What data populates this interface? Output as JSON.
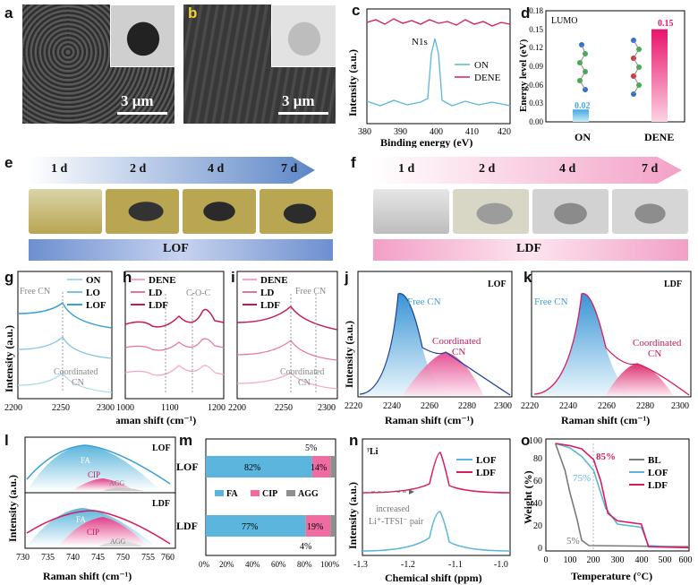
{
  "panel_labels": {
    "a": "a",
    "b": "b",
    "c": "c",
    "d": "d",
    "e": "e",
    "f": "f",
    "g": "g",
    "h": "h",
    "i": "i",
    "j": "j",
    "k": "k",
    "l": "l",
    "m": "m",
    "n": "n",
    "o": "o"
  },
  "sem": {
    "scale_a": "3 μm",
    "scale_b": "3 μm"
  },
  "photos": {
    "days": [
      "1 d",
      "2 d",
      "4 d",
      "7 d"
    ],
    "bar_e": "LOF",
    "bar_f": "LDF"
  },
  "colors": {
    "blue": "#5bb5dc",
    "pink": "#d81b60",
    "light_pink": "#f2a7c0",
    "grey": "#7a7a7a"
  },
  "chart_data": [
    {
      "panel": "c",
      "type": "line",
      "xlabel": "Binding energy (eV)",
      "ylabel": "Intensity (a.u.)",
      "xlim": [
        380,
        420
      ],
      "xticks": [
        "380",
        "390",
        "400",
        "410",
        "420"
      ],
      "annotation": "N1s",
      "series": [
        {
          "name": "ON",
          "color": "#5bb5dc"
        },
        {
          "name": "DENE",
          "color": "#d81b60"
        }
      ]
    },
    {
      "panel": "d",
      "type": "bar",
      "title": "LUMO",
      "ylabel": "Energy level (eV)",
      "categories": [
        "ON",
        "DENE"
      ],
      "values": [
        0.02,
        0.15
      ],
      "value_labels": [
        "0.02",
        "0.15"
      ],
      "ylim": [
        0,
        0.18
      ],
      "yticks": [
        "0.00",
        "0.03",
        "0.06",
        "0.09",
        "0.12",
        "0.15",
        "0.18"
      ]
    },
    {
      "panel": "g",
      "type": "line",
      "xlabel": "Raman shift (cm⁻¹)",
      "ylabel": "Intensity (a.u.)",
      "xlim": [
        2200,
        2300
      ],
      "xticks": [
        "2200",
        "2250",
        "2300"
      ],
      "annotations": [
        "Free CN",
        "Coordinated",
        "CN"
      ],
      "series": [
        {
          "name": "ON"
        },
        {
          "name": "LO"
        },
        {
          "name": "LOF"
        }
      ]
    },
    {
      "panel": "h",
      "type": "line",
      "xlabel": "Raman shift (cm⁻¹)",
      "xlim": [
        1000,
        1200
      ],
      "xticks": [
        "1000",
        "1100",
        "1200"
      ],
      "annotations": [
        "C-O-C"
      ],
      "series": [
        {
          "name": "DENE"
        },
        {
          "name": "LD"
        },
        {
          "name": "LDF"
        }
      ]
    },
    {
      "panel": "i",
      "type": "line",
      "xlabel": "Raman shift (cm⁻¹)",
      "xlim": [
        2200,
        2300
      ],
      "xticks": [
        "2200",
        "2250",
        "2300"
      ],
      "annotations": [
        "Free CN",
        "Coordinated",
        "CN"
      ],
      "series": [
        {
          "name": "DENE"
        },
        {
          "name": "LD"
        },
        {
          "name": "LDF"
        }
      ]
    },
    {
      "panel": "j",
      "type": "area",
      "title": "LOF",
      "xlabel": "Raman shift (cm⁻¹)",
      "ylabel": "Intensity (a.u.)",
      "xlim": [
        2220,
        2300
      ],
      "xticks": [
        "2220",
        "2240",
        "2260",
        "2280",
        "2300"
      ],
      "annotations": [
        "Free CN",
        "Coordinated",
        "CN"
      ]
    },
    {
      "panel": "k",
      "type": "area",
      "title": "LDF",
      "xlabel": "Raman shift (cm⁻¹)",
      "xlim": [
        2220,
        2300
      ],
      "xticks": [
        "2220",
        "2240",
        "2260",
        "2280",
        "2300"
      ],
      "annotations": [
        "Free CN",
        "Coordinated",
        "CN"
      ]
    },
    {
      "panel": "l",
      "type": "area",
      "xlabel": "Raman shift (cm⁻¹)",
      "ylabel": "Intensity (a.u.)",
      "xlim": [
        730,
        760
      ],
      "xticks": [
        "730",
        "735",
        "740",
        "745",
        "750",
        "755",
        "760"
      ],
      "subplots": [
        {
          "title": "LOF",
          "labels": [
            "FA",
            "CIP",
            "AGG"
          ]
        },
        {
          "title": "LDF",
          "labels": [
            "FA",
            "CIP",
            "AGG"
          ]
        }
      ]
    },
    {
      "panel": "m",
      "type": "bar",
      "orientation": "horizontal",
      "stacked": true,
      "categories": [
        "LOF",
        "LDF"
      ],
      "series": [
        {
          "name": "FA",
          "values": [
            82,
            77
          ],
          "color": "#5bb5dc"
        },
        {
          "name": "CIP",
          "values": [
            14,
            19
          ],
          "color": "#f06ba0"
        },
        {
          "name": "AGG",
          "values": [
            5,
            4
          ],
          "color": "#8f8f8f"
        }
      ],
      "value_labels": {
        "LOF": [
          "82%",
          "14%",
          "5%"
        ],
        "LDF": [
          "77%",
          "19%",
          "4%"
        ]
      },
      "xticks": [
        "0%",
        "20%",
        "40%",
        "60%",
        "80%",
        "100%"
      ]
    },
    {
      "panel": "n",
      "type": "line",
      "title": "⁷Li",
      "xlabel": "Chemical shift (ppm)",
      "ylabel": "Intensity (a.u.)",
      "xlim": [
        -1.3,
        -1.0
      ],
      "xticks": [
        "-1.3",
        "-1.2",
        "-1.1",
        "-1.0"
      ],
      "annotations": [
        "increased",
        "Li⁺-TFSI⁻ pair"
      ],
      "series": [
        {
          "name": "LOF",
          "color": "#5bb5dc"
        },
        {
          "name": "LDF",
          "color": "#d81b60"
        }
      ]
    },
    {
      "panel": "o",
      "type": "line",
      "xlabel": "Temperature (°C)",
      "ylabel": "Weight (%)",
      "xlim": [
        0,
        600
      ],
      "ylim": [
        0,
        100
      ],
      "xticks": [
        "0",
        "100",
        "200",
        "300",
        "400",
        "500",
        "600"
      ],
      "yticks": [
        "0",
        "20",
        "40",
        "60",
        "80",
        "100"
      ],
      "annotations": [
        "85%",
        "75%",
        "5%"
      ],
      "series": [
        {
          "name": "BL",
          "color": "#7a7a7a",
          "x": [
            40,
            80,
            100,
            130,
            150,
            180,
            600
          ],
          "y": [
            100,
            75,
            55,
            30,
            10,
            5,
            4
          ]
        },
        {
          "name": "LOF",
          "color": "#5bb5dc",
          "x": [
            40,
            100,
            150,
            200,
            250,
            300,
            400,
            430,
            600
          ],
          "y": [
            100,
            96,
            88,
            75,
            40,
            25,
            22,
            5,
            3
          ]
        },
        {
          "name": "LDF",
          "color": "#d81b60",
          "x": [
            40,
            100,
            150,
            200,
            230,
            260,
            300,
            400,
            430,
            600
          ],
          "y": [
            100,
            98,
            95,
            85,
            65,
            35,
            28,
            25,
            4,
            3
          ]
        }
      ]
    }
  ]
}
